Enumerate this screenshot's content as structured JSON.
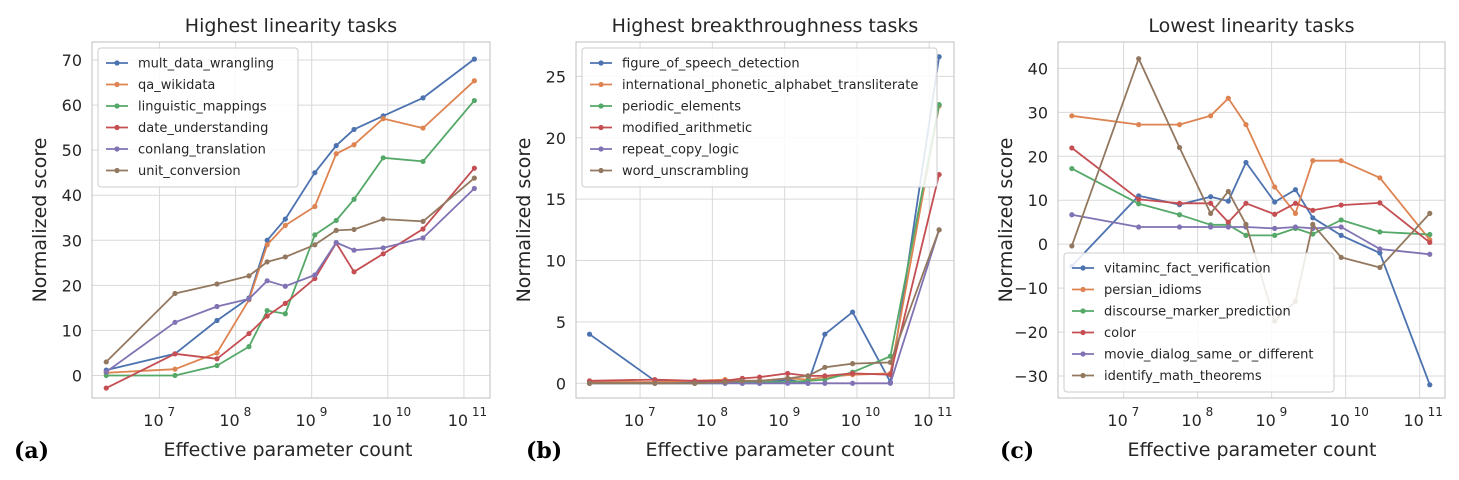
{
  "chart_data": [
    {
      "type": "line",
      "panel_label": "(a)",
      "title": "Highest linearity tasks",
      "xlabel": "Effective parameter count",
      "ylabel": "Normalized score",
      "x_scale": "log",
      "xlim": [
        1300000.0,
        220000000000.0
      ],
      "ylim": [
        -5,
        74
      ],
      "yticks": [
        0,
        10,
        20,
        30,
        40,
        50,
        60,
        70
      ],
      "ytick_labels": [
        "0",
        "10",
        "20",
        "30",
        "40",
        "50",
        "60",
        "70"
      ],
      "xticks": [
        10000000.0,
        100000000.0,
        1000000000.0,
        10000000000.0,
        100000000000.0
      ],
      "xtick_labels": [
        [
          "10",
          "7"
        ],
        [
          "10",
          "8"
        ],
        [
          "10",
          "9"
        ],
        [
          "10",
          "10"
        ],
        [
          "10",
          "11"
        ]
      ],
      "grid": true,
      "legend_position": "upper-left",
      "x": [
        2000000.0,
        16000000.0,
        57000000.0,
        150000000.0,
        260000000.0,
        450000000.0,
        1100000000.0,
        2100000000.0,
        3600000000.0,
        8700000000.0,
        29000000000.0,
        137000000000.0
      ],
      "series": [
        {
          "name": "mult_data_wrangling",
          "color": "#4c72b0",
          "values": [
            1.2,
            4.8,
            12.2,
            17.2,
            30.0,
            34.7,
            45.0,
            51.0,
            54.6,
            57.6,
            61.6,
            70.2
          ]
        },
        {
          "name": "qa_wikidata",
          "color": "#dd8452",
          "values": [
            0.6,
            1.4,
            5.0,
            16.8,
            29.0,
            33.3,
            37.5,
            49.2,
            51.2,
            57.0,
            54.9,
            65.4
          ]
        },
        {
          "name": "linguistic_mappings",
          "color": "#55a868",
          "values": [
            0.0,
            0.0,
            2.2,
            6.4,
            14.4,
            13.7,
            31.2,
            34.4,
            39.1,
            48.3,
            47.5,
            61.0
          ]
        },
        {
          "name": "date_understanding",
          "color": "#c44e52",
          "values": [
            -2.8,
            4.8,
            3.7,
            9.3,
            13.2,
            16.0,
            21.5,
            29.4,
            23.0,
            27.0,
            32.5,
            46.0
          ]
        },
        {
          "name": "conlang_translation",
          "color": "#8172b3",
          "values": [
            0.8,
            11.8,
            15.3,
            17.0,
            21.0,
            19.8,
            22.3,
            29.5,
            27.8,
            28.3,
            30.5,
            41.5
          ]
        },
        {
          "name": "unit_conversion",
          "color": "#937860",
          "values": [
            3.0,
            18.2,
            20.3,
            22.1,
            25.2,
            26.3,
            29.0,
            32.2,
            32.4,
            34.7,
            34.2,
            43.8
          ]
        }
      ]
    },
    {
      "type": "line",
      "panel_label": "(b)",
      "title": "Highest breakthroughness tasks",
      "xlabel": "Effective parameter count",
      "ylabel": "Normalized score",
      "x_scale": "log",
      "xlim": [
        1300000.0,
        220000000000.0
      ],
      "ylim": [
        -1.2,
        27.8
      ],
      "yticks": [
        0,
        5,
        10,
        15,
        20,
        25
      ],
      "ytick_labels": [
        "0",
        "5",
        "10",
        "15",
        "20",
        "25"
      ],
      "xticks": [
        10000000.0,
        100000000.0,
        1000000000.0,
        10000000000.0,
        100000000000.0
      ],
      "xtick_labels": [
        [
          "10",
          "7"
        ],
        [
          "10",
          "8"
        ],
        [
          "10",
          "9"
        ],
        [
          "10",
          "10"
        ],
        [
          "10",
          "11"
        ]
      ],
      "grid": true,
      "legend_position": "upper-left",
      "x": [
        2000000.0,
        16000000.0,
        57000000.0,
        150000000.0,
        260000000.0,
        450000000.0,
        1100000000.0,
        2100000000.0,
        3600000000.0,
        8700000000.0,
        29000000000.0,
        137000000000.0
      ],
      "series": [
        {
          "name": "figure_of_speech_detection",
          "color": "#4c72b0",
          "values": [
            4.0,
            0.2,
            0.1,
            0.05,
            0.0,
            0.0,
            0.3,
            0.0,
            4.0,
            5.8,
            0.1,
            26.6
          ]
        },
        {
          "name": "international_phonetic_alphabet_transliterate",
          "color": "#dd8452",
          "values": [
            0.1,
            0.1,
            0.2,
            0.3,
            0.2,
            0.2,
            0.4,
            0.3,
            0.5,
            0.7,
            0.8,
            22.6
          ]
        },
        {
          "name": "periodic_elements",
          "color": "#55a868",
          "values": [
            0.0,
            0.0,
            0.0,
            0.0,
            0.1,
            0.1,
            0.1,
            0.2,
            0.3,
            0.9,
            2.2,
            22.7
          ]
        },
        {
          "name": "modified_arithmetic",
          "color": "#c44e52",
          "values": [
            0.2,
            0.3,
            0.2,
            0.2,
            0.4,
            0.5,
            0.8,
            0.6,
            0.6,
            0.8,
            0.7,
            17.0
          ]
        },
        {
          "name": "repeat_copy_logic",
          "color": "#8172b3",
          "values": [
            0.0,
            0.0,
            0.0,
            0.0,
            0.0,
            0.0,
            0.0,
            0.0,
            0.0,
            0.0,
            0.0,
            12.5
          ]
        },
        {
          "name": "word_unscrambling",
          "color": "#937860",
          "values": [
            0.0,
            0.0,
            0.0,
            0.1,
            0.2,
            0.2,
            0.4,
            0.6,
            1.3,
            1.6,
            1.7,
            12.5
          ]
        }
      ]
    },
    {
      "type": "line",
      "panel_label": "(c)",
      "title": "Lowest linearity tasks",
      "xlabel": "Effective parameter count",
      "ylabel": "Normalized score",
      "x_scale": "log",
      "xlim": [
        1300000.0,
        220000000000.0
      ],
      "ylim": [
        -35,
        46
      ],
      "yticks": [
        -30,
        -20,
        -10,
        0,
        10,
        20,
        30,
        40
      ],
      "ytick_labels": [
        "−30",
        "−20",
        "−10",
        "0",
        "10",
        "20",
        "30",
        "40"
      ],
      "xticks": [
        10000000.0,
        100000000.0,
        1000000000.0,
        10000000000.0,
        100000000000.0
      ],
      "xtick_labels": [
        [
          "10",
          "7"
        ],
        [
          "10",
          "8"
        ],
        [
          "10",
          "9"
        ],
        [
          "10",
          "10"
        ],
        [
          "10",
          "11"
        ]
      ],
      "grid": true,
      "legend_position": "lower-left",
      "x": [
        2000000.0,
        16000000.0,
        57000000.0,
        150000000.0,
        260000000.0,
        450000000.0,
        1100000000.0,
        2100000000.0,
        3600000000.0,
        8700000000.0,
        29000000000.0,
        137000000000.0
      ],
      "series": [
        {
          "name": "vitaminc_fact_verification",
          "color": "#4c72b0",
          "values": [
            -5.0,
            11.0,
            9.0,
            10.8,
            9.8,
            18.6,
            9.6,
            12.4,
            6.0,
            2.0,
            -2.0,
            -32.0
          ]
        },
        {
          "name": "persian_idioms",
          "color": "#dd8452",
          "values": [
            29.2,
            27.2,
            27.2,
            29.2,
            33.2,
            27.2,
            13.0,
            7.0,
            19.0,
            19.0,
            15.1,
            1.0
          ]
        },
        {
          "name": "discourse_marker_prediction",
          "color": "#55a868",
          "values": [
            17.2,
            9.2,
            6.7,
            4.4,
            4.4,
            2.0,
            2.0,
            3.6,
            2.3,
            5.5,
            2.8,
            2.2
          ]
        },
        {
          "name": "color",
          "color": "#c44e52",
          "values": [
            21.9,
            10.2,
            9.3,
            9.3,
            5.0,
            9.3,
            6.8,
            9.3,
            7.7,
            8.9,
            9.4,
            0.4
          ]
        },
        {
          "name": "movie_dialog_same_or_different",
          "color": "#8172b3",
          "values": [
            6.7,
            3.9,
            3.9,
            3.9,
            3.9,
            3.9,
            3.6,
            3.9,
            3.6,
            3.9,
            -1.1,
            -2.3
          ]
        },
        {
          "name": "identify_math_theorems",
          "color": "#937860",
          "values": [
            -0.4,
            42.2,
            22.0,
            7.0,
            12.0,
            4.5,
            -17.5,
            -13.0,
            4.5,
            -3.0,
            -5.3,
            7.0
          ]
        }
      ]
    }
  ]
}
